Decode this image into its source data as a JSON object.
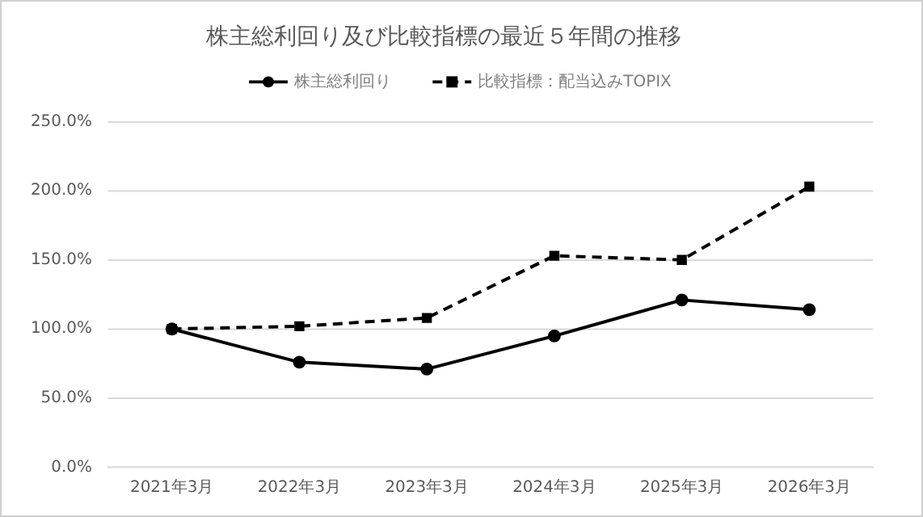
{
  "chart_data": {
    "type": "line",
    "title": "株主総利回り及び比較指標の最近５年間の推移",
    "categories": [
      "2021年3月",
      "2022年3月",
      "2023年3月",
      "2024年3月",
      "2025年3月",
      "2026年3月"
    ],
    "series": [
      {
        "name": "株主総利回り",
        "color": "#000000",
        "values": [
          100,
          76,
          71,
          95,
          121,
          114
        ],
        "marker": "circle",
        "line_style": "solid"
      },
      {
        "name": "比較指標：配当込みTOPIX",
        "color": "#000000",
        "values": [
          100,
          102,
          108,
          153,
          150,
          203
        ],
        "marker": "square",
        "line_style": "dashed"
      }
    ],
    "ylim": [
      0,
      250
    ],
    "yticks": [
      {
        "value": 0,
        "label": "0.0%"
      },
      {
        "value": 50,
        "label": "50.0%"
      },
      {
        "value": 100,
        "label": "100.0%"
      },
      {
        "value": 150,
        "label": "150.0%"
      },
      {
        "value": 200,
        "label": "200.0%"
      },
      {
        "value": 250,
        "label": "250.0%"
      }
    ],
    "grid": "y",
    "legend": "top"
  }
}
